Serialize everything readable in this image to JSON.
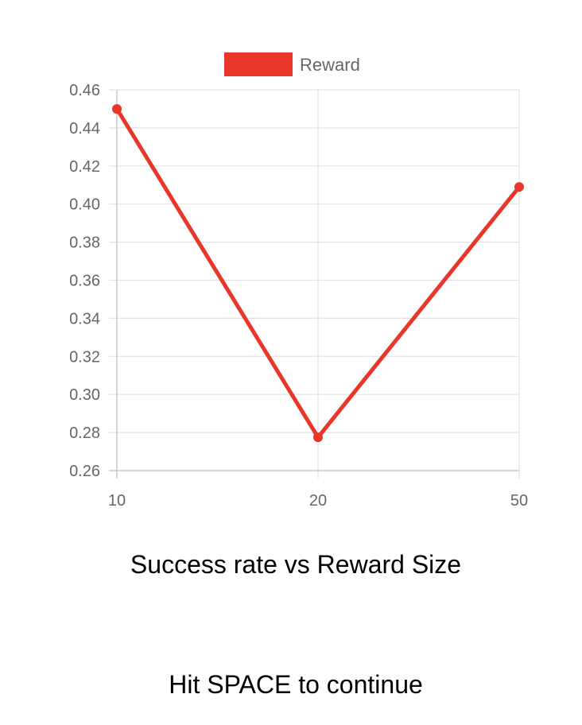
{
  "chart_data": {
    "type": "line",
    "categories": [
      "10",
      "20",
      "50"
    ],
    "series": [
      {
        "name": "Reward",
        "values": [
          0.45,
          0.2775,
          0.409
        ],
        "color": "#e8372a"
      }
    ],
    "yticks": [
      "0.46",
      "0.44",
      "0.42",
      "0.40",
      "0.38",
      "0.36",
      "0.34",
      "0.32",
      "0.30",
      "0.28",
      "0.26"
    ],
    "ylim": [
      0.26,
      0.46
    ],
    "grid": true,
    "legend": "top-center"
  },
  "caption": "Success rate vs Reward Size",
  "prompt": "Hit SPACE to continue"
}
